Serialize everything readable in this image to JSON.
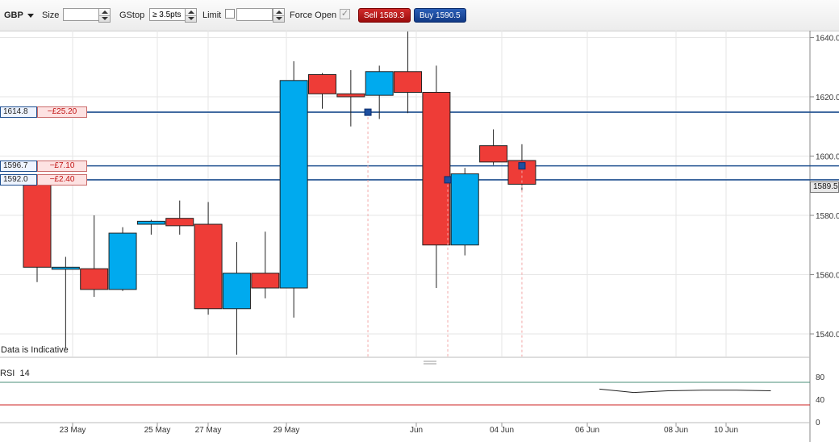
{
  "toolbar": {
    "instrument": "GBP",
    "size_label": "Size",
    "size_value": "",
    "gstop_label": "GStop",
    "gstop_value": "≥ 3.5pts",
    "limit_label": "Limit",
    "limit_value": "",
    "force_open_label": "Force Open",
    "sell_label": "Sell 1589.3",
    "buy_label": "Buy 1590.5"
  },
  "orders": [
    {
      "price": "1614.8",
      "pl": "−£25.20",
      "level": 1614.8
    },
    {
      "price": "1596.7",
      "pl": "−£7.10",
      "level": 1596.7
    },
    {
      "price": "1592.0",
      "pl": "−£2.40",
      "level": 1592.0
    }
  ],
  "last_price": "1589.5",
  "indicative_text": "Data is Indicative",
  "rsi": {
    "label": "RSI",
    "period": "14",
    "axis_labels": [
      "80",
      "40",
      "0"
    ],
    "overbought": 70,
    "oversold": 30,
    "values": [
      58,
      52,
      55,
      56,
      56,
      55
    ]
  },
  "colors": {
    "up": "#00aaee",
    "down": "#ee3c37",
    "order_line": "#1f4f8f",
    "sell": "#b31515",
    "buy": "#1b4a9e"
  },
  "chart_data": {
    "type": "candlestick",
    "ylim": [
      1532,
      1642
    ],
    "y_ticks": [
      1540,
      1560,
      1580,
      1600,
      1620,
      1640
    ],
    "x_labels": [
      "23 May",
      "25 May",
      "27 May",
      "29 May",
      "Jun",
      "04 Jun",
      "06 Jun",
      "08 Jun",
      "10 Jun"
    ],
    "candles": [
      {
        "o": 1592,
        "h": 1592,
        "l": 1557.5,
        "c": 1562.5
      },
      {
        "o": 1562,
        "h": 1566,
        "l": 1535,
        "c": 1562.5
      },
      {
        "o": 1562,
        "h": 1580,
        "l": 1552.5,
        "c": 1555
      },
      {
        "o": 1555,
        "h": 1576,
        "l": 1554.5,
        "c": 1574
      },
      {
        "o": 1577,
        "h": 1578.5,
        "l": 1573.5,
        "c": 1578
      },
      {
        "o": 1579,
        "h": 1585,
        "l": 1573.5,
        "c": 1576.5
      },
      {
        "o": 1577,
        "h": 1584.5,
        "l": 1546.5,
        "c": 1548.5
      },
      {
        "o": 1548.5,
        "h": 1571,
        "l": 1533,
        "c": 1560.5
      },
      {
        "o": 1560.5,
        "h": 1574.5,
        "l": 1552,
        "c": 1555.5
      },
      {
        "o": 1555.5,
        "h": 1632,
        "l": 1545.5,
        "c": 1625.5
      },
      {
        "o": 1627.5,
        "h": 1628,
        "l": 1616,
        "c": 1621
      },
      {
        "o": 1621,
        "h": 1629,
        "l": 1610,
        "c": 1620
      },
      {
        "o": 1620.5,
        "h": 1630.5,
        "l": 1612.5,
        "c": 1628.5
      },
      {
        "o": 1628.5,
        "h": 1642,
        "l": 1614.5,
        "c": 1621.5
      },
      {
        "o": 1621.5,
        "h": 1630.5,
        "l": 1555.5,
        "c": 1570
      },
      {
        "o": 1570,
        "h": 1596,
        "l": 1566.5,
        "c": 1594
      },
      {
        "o": 1603.5,
        "h": 1609,
        "l": 1597,
        "c": 1598
      },
      {
        "o": 1598.5,
        "h": 1604,
        "l": 1588.5,
        "c": 1590.5
      }
    ]
  }
}
